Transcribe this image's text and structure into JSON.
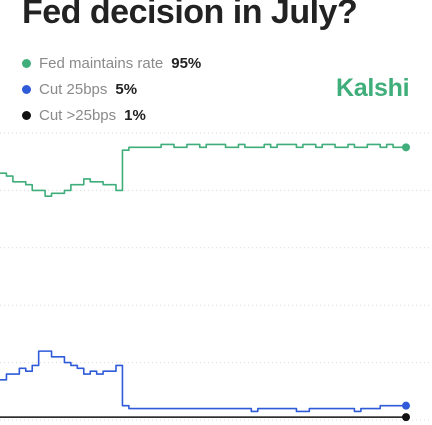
{
  "title": "Fed decision in July?",
  "brand": "Kalshi",
  "chart_data": {
    "type": "line",
    "grid": true,
    "legend_position": "top-left",
    "series": [
      {
        "name": "Fed maintains rate",
        "current_label": "95%",
        "color": "#3fae7a",
        "values": [
          86,
          85,
          83,
          83,
          82,
          80,
          80,
          78,
          79,
          79,
          80,
          82,
          82,
          84,
          83,
          83,
          82,
          82,
          80,
          94,
          95,
          95,
          95,
          95,
          95,
          96,
          96,
          95,
          95,
          96,
          96,
          95,
          96,
          96,
          96,
          95,
          95,
          96,
          95,
          95,
          95,
          96,
          95,
          96,
          96,
          96,
          95,
          96,
          96,
          95,
          96,
          96,
          95,
          95,
          96,
          95,
          95,
          96,
          96,
          95,
          96,
          95,
          95,
          95
        ]
      },
      {
        "name": "Cut 25bps",
        "current_label": "5%",
        "color": "#2f5bd9",
        "values": [
          14,
          16,
          16,
          18,
          17,
          19,
          24,
          24,
          22,
          22,
          20,
          19,
          18,
          16,
          17,
          16,
          17,
          17,
          19,
          5,
          4,
          4,
          4,
          4,
          4,
          4,
          4,
          4,
          4,
          4,
          4,
          4,
          4,
          4,
          4,
          4,
          4,
          4,
          4,
          3,
          4,
          4,
          4,
          4,
          4,
          4,
          3,
          3,
          4,
          4,
          4,
          4,
          4,
          4,
          4,
          3,
          4,
          4,
          4,
          5,
          5,
          5,
          5,
          5
        ]
      },
      {
        "name": "Cut >25bps",
        "current_label": "1%",
        "color": "#111111",
        "values": [
          1,
          1,
          1,
          1,
          1,
          1,
          1,
          1,
          1,
          1,
          1,
          1,
          1,
          1,
          1,
          1,
          1,
          1,
          1,
          1,
          1,
          1,
          1,
          1,
          1,
          1,
          1,
          1,
          1,
          1,
          1,
          1,
          1,
          1,
          1,
          1,
          1,
          1,
          1,
          1,
          1,
          1,
          1,
          1,
          1,
          1,
          1,
          1,
          1,
          1,
          1,
          1,
          1,
          1,
          1,
          1,
          1,
          1,
          1,
          1,
          1,
          1,
          1,
          1
        ]
      }
    ]
  }
}
